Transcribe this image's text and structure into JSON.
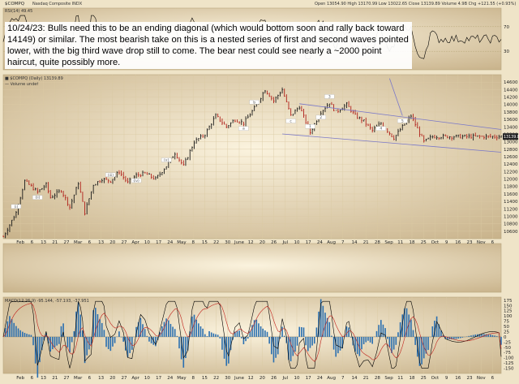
{
  "header": {
    "symbol": "$COMPQ",
    "subtitle": "Nasdaq Composite  INDX",
    "ohlc_line": "Open 13054.90   High 13170.99   Low 13022.65   Close 13139.89   Volume 4.9B   Chg +121.55 (+0.93%)",
    "price_legend": "■ $COMPQ (Daily) 13139.89",
    "volume_legend": "— Volume undef",
    "rsi_legend": "RSI(14) 49.45",
    "macd_legend": "MACD(12,26,9) -95.144, -57.193, -37.951"
  },
  "annotation": {
    "text": "10/24/23:  Bulls need this to be an ending diagonal (which would bottom soon and rally back toward 14149) or similar.  The most bearish take on this is a nested series of first and second waves pointed lower, with the big third wave drop still to come.  The bear nest could see nearly a ~2000 point haircut, quite possibly more."
  },
  "chart_data": [
    {
      "name": "price",
      "type": "line",
      "series_style": "price bars (daily)",
      "x_ticks": [
        "Feb",
        "6",
        "13",
        "21",
        "27",
        "Mar",
        "6",
        "13",
        "20",
        "27",
        "Apr",
        "10",
        "17",
        "24",
        "May",
        "8",
        "15",
        "22",
        "30",
        "June",
        "12",
        "20",
        "26",
        "Jul",
        "10",
        "17",
        "24",
        "Aug",
        "7",
        "14",
        "21",
        "28",
        "Sep",
        "11",
        "18",
        "25",
        "Oct",
        "9",
        "16",
        "23",
        "Nov",
        "6"
      ],
      "y_axis_right": [
        10600,
        10800,
        11000,
        11200,
        11400,
        11600,
        11800,
        12000,
        12200,
        12400,
        12600,
        12800,
        13000,
        13200,
        13400,
        13600,
        13800,
        14000,
        14200,
        14400,
        14600
      ],
      "ylim": [
        10400,
        14800
      ],
      "last_price": 13139.89,
      "x_index": [
        0,
        6,
        10,
        16,
        20,
        22,
        27,
        31,
        35,
        38,
        42,
        46,
        50,
        54,
        58,
        62,
        66,
        71,
        76,
        80,
        84,
        89,
        94,
        99,
        104,
        108,
        112,
        117,
        122,
        126,
        130,
        134,
        138,
        143,
        148,
        152,
        155,
        160,
        164,
        168,
        172,
        176,
        182,
        186,
        190,
        196,
        200
      ],
      "close": [
        10450,
        11100,
        11950,
        11650,
        11850,
        11500,
        11700,
        11250,
        11900,
        11100,
        11850,
        12000,
        11950,
        12200,
        11900,
        12100,
        12150,
        12000,
        12350,
        12700,
        12350,
        13000,
        13200,
        13700,
        13400,
        13600,
        13500,
        13900,
        14400,
        14100,
        14400,
        13700,
        13950,
        13250,
        13800,
        14050,
        13800,
        14000,
        13700,
        13550,
        13300,
        13500,
        13100,
        13400,
        13700,
        13000,
        13140
      ],
      "wave_labels": [
        "(i)",
        "(ii)",
        "(iii)",
        "(iv)",
        "(v)",
        "a",
        "b",
        "c",
        "1",
        "2",
        "3",
        "4",
        "5"
      ]
    },
    {
      "name": "RSI(14)",
      "type": "line",
      "ylim": [
        0,
        100
      ],
      "levels": [
        30,
        70
      ],
      "last": 49.45
    },
    {
      "name": "MACD(12,26,9)",
      "type": "line",
      "y_axis_right": [
        -150,
        -125,
        -100,
        -75,
        -50,
        -25,
        0,
        25,
        50,
        75,
        100,
        125,
        150,
        175
      ],
      "ylim": [
        -175,
        190
      ],
      "macd": -95.144,
      "signal": -57.193,
      "histogram": -37.951
    }
  ],
  "trendlines": {
    "upper": {
      "from": [
        138,
        14020
      ],
      "to": [
        232,
        13330
      ]
    },
    "lower": {
      "from": [
        130,
        13210
      ],
      "to": [
        232,
        12720
      ]
    },
    "pointer": {
      "from": [
        180,
        14700
      ],
      "to": [
        186,
        13700
      ]
    }
  },
  "colors": {
    "background": "#e9dcc0",
    "price_up": "#1a1a1a",
    "price_down": "#b0201a",
    "trendline": "#7a78c8",
    "macd_line": "#000000",
    "signal_line": "#c0201a",
    "histogram": "#2a6fb0",
    "rsi_line": "#000000"
  }
}
